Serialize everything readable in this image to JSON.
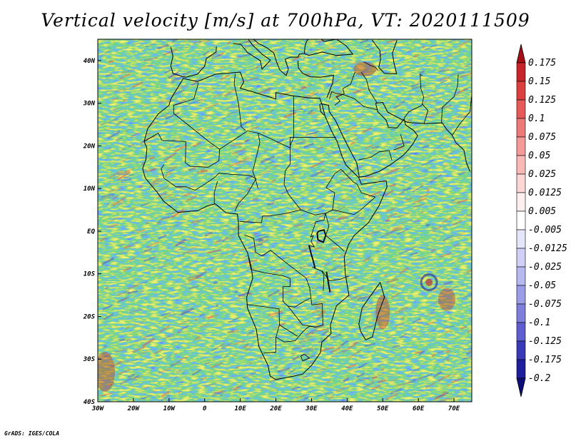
{
  "title": "Vertical velocity [m/s] at 700hPa, VT: 2020111509",
  "lat_labels": [
    "40N",
    "30N",
    "20N",
    "10N",
    "EQ",
    "10S",
    "20S",
    "30S",
    "40S"
  ],
  "lon_labels": [
    "30W",
    "20W",
    "10W",
    "0",
    "10E",
    "20E",
    "30E",
    "40E",
    "50E",
    "60E",
    "70E"
  ],
  "colorbar": {
    "labels": [
      "0.175",
      "0.15",
      "0.125",
      "0.1",
      "0.075",
      "0.05",
      "0.025",
      "0.0125",
      "0.005",
      "-0.005",
      "-0.0125",
      "-0.025",
      "-0.05",
      "-0.075",
      "-0.1",
      "-0.125",
      "-0.175",
      "-0.2"
    ],
    "colors": [
      "#a50f15",
      "#c8252b",
      "#dd3e3e",
      "#e65a5a",
      "#ee7a78",
      "#f49a98",
      "#f8b9b7",
      "#fcd7d6",
      "#fff0f0",
      "#ffffff",
      "#e6e6fb",
      "#d0d0f6",
      "#b8b8f0",
      "#9c9ce8",
      "#7e7edd",
      "#5e5ecf",
      "#3a3ab8",
      "#1f1f9e",
      "#0d0d7a"
    ]
  },
  "credit": "GrADS: IGES/COLA",
  "map": {
    "extent": {
      "lon_min": -30,
      "lon_max": 75,
      "lat_min": -40,
      "lat_max": 45
    },
    "field_colors": {
      "pos": "#e05050",
      "neg": "#5050d0",
      "background": "#f2eef8"
    }
  }
}
